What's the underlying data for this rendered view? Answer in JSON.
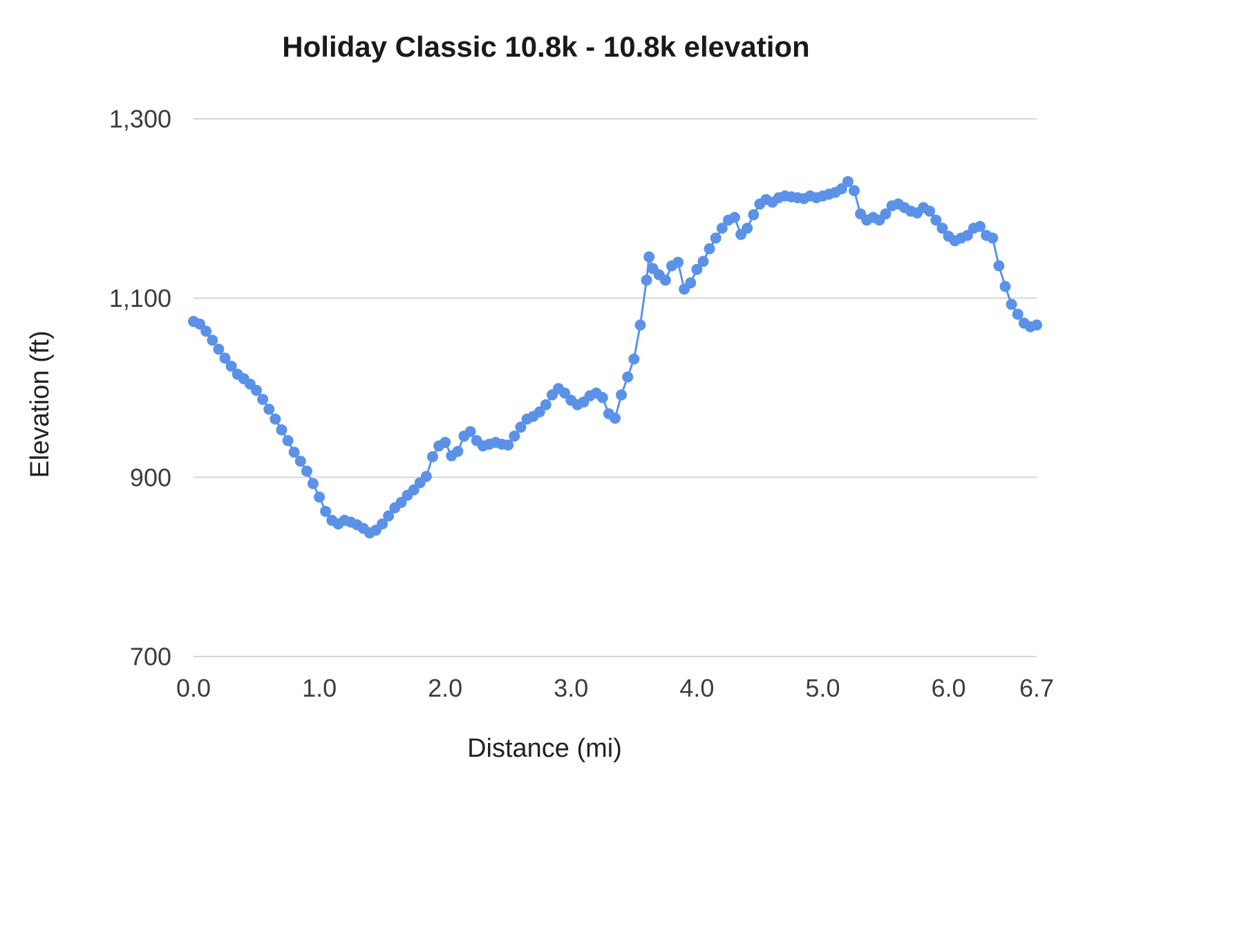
{
  "chart_data": {
    "type": "scatter",
    "title": "Holiday Classic 10.8k - 10.8k elevation",
    "xlabel": "Distance (mi)",
    "ylabel": "Elevation (ft)",
    "xlim": [
      0,
      6.7
    ],
    "ylim": [
      700,
      1300
    ],
    "xticks": [
      0,
      1,
      2,
      3,
      4,
      5,
      6,
      6.7
    ],
    "xtick_labels": [
      "0.0",
      "1.0",
      "2.0",
      "3.0",
      "4.0",
      "5.0",
      "6.0",
      "6.7"
    ],
    "yticks": [
      700,
      900,
      1100,
      1300
    ],
    "ytick_labels": [
      "700",
      "900",
      "1,100",
      "1,300"
    ],
    "grid": "horizontal",
    "legend": "none",
    "grid_color": "#d6d6d6",
    "point_color": "#5b92e8",
    "points": [
      [
        0.0,
        1074
      ],
      [
        0.05,
        1071
      ],
      [
        0.1,
        1063
      ],
      [
        0.15,
        1053
      ],
      [
        0.2,
        1043
      ],
      [
        0.25,
        1033
      ],
      [
        0.3,
        1024
      ],
      [
        0.35,
        1015
      ],
      [
        0.4,
        1010
      ],
      [
        0.45,
        1004
      ],
      [
        0.5,
        997
      ],
      [
        0.55,
        987
      ],
      [
        0.6,
        976
      ],
      [
        0.65,
        965
      ],
      [
        0.7,
        953
      ],
      [
        0.75,
        941
      ],
      [
        0.8,
        928
      ],
      [
        0.85,
        918
      ],
      [
        0.9,
        907
      ],
      [
        0.95,
        893
      ],
      [
        1.0,
        878
      ],
      [
        1.05,
        862
      ],
      [
        1.1,
        852
      ],
      [
        1.15,
        848
      ],
      [
        1.2,
        852
      ],
      [
        1.25,
        850
      ],
      [
        1.3,
        847
      ],
      [
        1.35,
        843
      ],
      [
        1.4,
        838
      ],
      [
        1.45,
        841
      ],
      [
        1.5,
        848
      ],
      [
        1.55,
        857
      ],
      [
        1.6,
        866
      ],
      [
        1.65,
        872
      ],
      [
        1.7,
        880
      ],
      [
        1.75,
        886
      ],
      [
        1.8,
        894
      ],
      [
        1.85,
        901
      ],
      [
        1.9,
        923
      ],
      [
        1.95,
        935
      ],
      [
        2.0,
        939
      ],
      [
        2.05,
        924
      ],
      [
        2.1,
        929
      ],
      [
        2.15,
        946
      ],
      [
        2.2,
        951
      ],
      [
        2.25,
        941
      ],
      [
        2.3,
        935
      ],
      [
        2.35,
        937
      ],
      [
        2.4,
        939
      ],
      [
        2.45,
        937
      ],
      [
        2.5,
        936
      ],
      [
        2.55,
        946
      ],
      [
        2.6,
        956
      ],
      [
        2.65,
        965
      ],
      [
        2.7,
        968
      ],
      [
        2.75,
        973
      ],
      [
        2.8,
        981
      ],
      [
        2.85,
        992
      ],
      [
        2.9,
        999
      ],
      [
        2.95,
        994
      ],
      [
        3.0,
        986
      ],
      [
        3.05,
        981
      ],
      [
        3.1,
        984
      ],
      [
        3.15,
        991
      ],
      [
        3.2,
        994
      ],
      [
        3.25,
        989
      ],
      [
        3.3,
        971
      ],
      [
        3.35,
        966
      ],
      [
        3.4,
        992
      ],
      [
        3.45,
        1012
      ],
      [
        3.5,
        1032
      ],
      [
        3.55,
        1070
      ],
      [
        3.6,
        1120
      ],
      [
        3.62,
        1146
      ],
      [
        3.65,
        1133
      ],
      [
        3.7,
        1126
      ],
      [
        3.75,
        1120
      ],
      [
        3.8,
        1136
      ],
      [
        3.85,
        1140
      ],
      [
        3.9,
        1110
      ],
      [
        3.95,
        1117
      ],
      [
        4.0,
        1132
      ],
      [
        4.05,
        1141
      ],
      [
        4.1,
        1155
      ],
      [
        4.15,
        1167
      ],
      [
        4.2,
        1178
      ],
      [
        4.25,
        1187
      ],
      [
        4.3,
        1190
      ],
      [
        4.35,
        1171
      ],
      [
        4.4,
        1178
      ],
      [
        4.45,
        1193
      ],
      [
        4.5,
        1205
      ],
      [
        4.55,
        1210
      ],
      [
        4.6,
        1207
      ],
      [
        4.65,
        1212
      ],
      [
        4.7,
        1214
      ],
      [
        4.75,
        1213
      ],
      [
        4.8,
        1212
      ],
      [
        4.85,
        1211
      ],
      [
        4.9,
        1214
      ],
      [
        4.95,
        1212
      ],
      [
        5.0,
        1214
      ],
      [
        5.05,
        1216
      ],
      [
        5.1,
        1218
      ],
      [
        5.15,
        1222
      ],
      [
        5.2,
        1230
      ],
      [
        5.25,
        1220
      ],
      [
        5.3,
        1194
      ],
      [
        5.35,
        1187
      ],
      [
        5.4,
        1190
      ],
      [
        5.45,
        1187
      ],
      [
        5.5,
        1194
      ],
      [
        5.55,
        1203
      ],
      [
        5.6,
        1205
      ],
      [
        5.65,
        1201
      ],
      [
        5.7,
        1197
      ],
      [
        5.75,
        1195
      ],
      [
        5.8,
        1201
      ],
      [
        5.85,
        1197
      ],
      [
        5.9,
        1187
      ],
      [
        5.95,
        1178
      ],
      [
        6.0,
        1169
      ],
      [
        6.05,
        1164
      ],
      [
        6.1,
        1167
      ],
      [
        6.15,
        1170
      ],
      [
        6.2,
        1178
      ],
      [
        6.25,
        1180
      ],
      [
        6.3,
        1170
      ],
      [
        6.35,
        1167
      ],
      [
        6.4,
        1136
      ],
      [
        6.45,
        1113
      ],
      [
        6.5,
        1093
      ],
      [
        6.55,
        1082
      ],
      [
        6.6,
        1072
      ],
      [
        6.65,
        1068
      ],
      [
        6.7,
        1070
      ]
    ]
  }
}
